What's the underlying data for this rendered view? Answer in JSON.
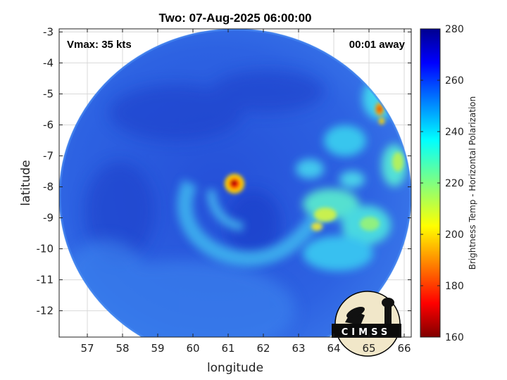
{
  "chart_data": {
    "type": "heatmap",
    "title": "Two: 07-Aug-2025 06:00:00",
    "xlabel": "longitude",
    "ylabel": "latitude",
    "xlim": [
      56.2,
      66.2
    ],
    "ylim": [
      -12.85,
      -2.9
    ],
    "x_ticks": [
      57,
      58,
      59,
      60,
      61,
      62,
      63,
      64,
      65,
      66
    ],
    "y_ticks": [
      -3,
      -4,
      -5,
      -6,
      -7,
      -8,
      -9,
      -10,
      -11,
      -12
    ],
    "annotations": {
      "left": "Vmax: 35 kts",
      "right": "00:01 away"
    },
    "colorbar": {
      "label": "Brightness Temp - Horizontal Polarization",
      "range": [
        160,
        280
      ],
      "ticks": [
        280,
        260,
        240,
        220,
        200,
        180,
        160
      ],
      "colormap": "jet"
    },
    "features": [
      {
        "lon": 61.15,
        "lat": -7.9,
        "value": 168
      },
      {
        "lon": 65.3,
        "lat": -5.5,
        "value": 180
      },
      {
        "lon": 65.3,
        "lat": -5.85,
        "value": 195
      },
      {
        "lon": 65.6,
        "lat": -7.2,
        "value": 205
      },
      {
        "lon": 63.8,
        "lat": -9.1,
        "value": 215
      },
      {
        "lon": 64.2,
        "lat": -9.9,
        "value": 225
      },
      {
        "lon": 64.8,
        "lat": -9.3,
        "value": 230
      },
      {
        "lon": 63.2,
        "lat": -8.6,
        "value": 235
      },
      {
        "lon": 61.5,
        "lat": -9.6,
        "value": 245
      },
      {
        "lon": 60.2,
        "lat": -9.3,
        "value": 248
      },
      {
        "lon": 64.5,
        "lat": -6.5,
        "value": 240
      }
    ]
  },
  "logo": {
    "text": "CIMSS"
  },
  "colors": {
    "frame": "#222222",
    "grid": "#d9d9d9",
    "background": "#2a5ed8"
  }
}
